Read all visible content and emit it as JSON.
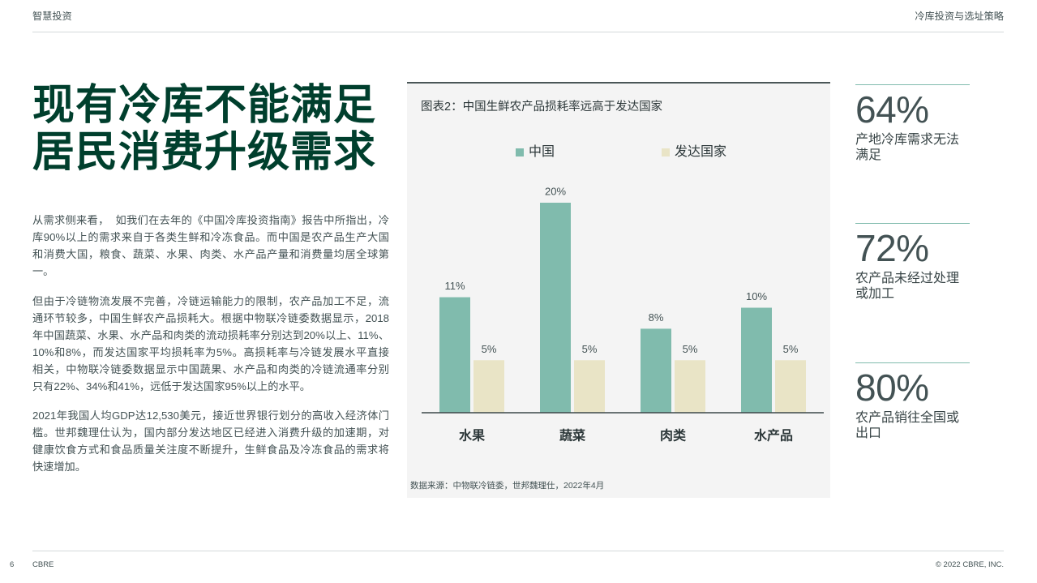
{
  "theme": {
    "title_color": "#003f2d",
    "text_color": "#435254",
    "accent_color": "#80bbad",
    "panel_background": "#f4f4f4"
  },
  "header": {
    "section": "智慧投资",
    "report_title": "冷库投资与选址策略"
  },
  "page_title": {
    "lines": [
      "现有冷库不能满足",
      "居民消费升级需求"
    ]
  },
  "body": {
    "paragraph_1": [
      "从需求侧来看，  如我们在去年的《中国冷库投资指南》报告中所指出，冷",
      "库90%以上的需求来自于各类生鲜和冷冻食品。而中国是农产品生产大国",
      "和消费大国，粮食、蔬菜、水果、肉类、水产品产量和消费量均居全球第",
      "一。"
    ],
    "paragraph_2": [
      "但由于冷链物流发展不完善，冷链运输能力的限制，农产品加工不足，流",
      "通环节较多，中国生鲜农产品损耗大。根据中物联冷链委数据显示，2018",
      "年中国蔬菜、水果、水产品和肉类的流动损耗率分别达到20%以上、11%、",
      "10%和8%，而发达国家平均损耗率为5%。高损耗率与冷链发展水平直接",
      "相关，中物联冷链委数据显示中国蔬果、水产品和肉类的冷链流通率分别",
      "只有22%、34%和41%，远低于发达国家95%以上的水平。"
    ],
    "paragraph_3": [
      "2021年我国人均GDP达12,530美元，接近世界银行划分的高收入经济体门",
      "槛。世邦魏理仕认为，国内部分发达地区已经进入消费升级的加速期，对",
      "健康饮食方式和食品质量关注度不断提升，生鲜食品及冷冻食品的需求将",
      "快速增加。"
    ]
  },
  "chart_data": {
    "type": "bar",
    "title": "图表2：中国生鲜农产品损耗率远高于发达国家",
    "categories": [
      "水果",
      "蔬菜",
      "肉类",
      "水产品"
    ],
    "series": [
      {
        "name": "中国",
        "values": [
          11,
          20,
          8,
          10
        ],
        "data_labels": [
          "11%",
          "20%",
          "8%",
          "10%"
        ],
        "color": "#80bbad"
      },
      {
        "name": "发达国家",
        "values": [
          5,
          5,
          5,
          5
        ],
        "data_labels": [
          "5%",
          "5%",
          "5%",
          "5%"
        ],
        "color": "#e9e4c6"
      }
    ],
    "ylim": [
      0,
      20
    ],
    "grid": false,
    "legend": "top",
    "source": "数据来源：中物联冷链委，世邦魏理仕，2022年4月"
  },
  "stats": [
    {
      "value": "64%",
      "label": "产地冷库需求无法满足"
    },
    {
      "value": "72%",
      "label": "农产品未经过处理或加工"
    },
    {
      "value": "80%",
      "label": "农产品销往全国或出口"
    }
  ],
  "footer": {
    "page_number": "6",
    "brand": "CBRE",
    "copyright": "© 2022 CBRE, INC."
  }
}
